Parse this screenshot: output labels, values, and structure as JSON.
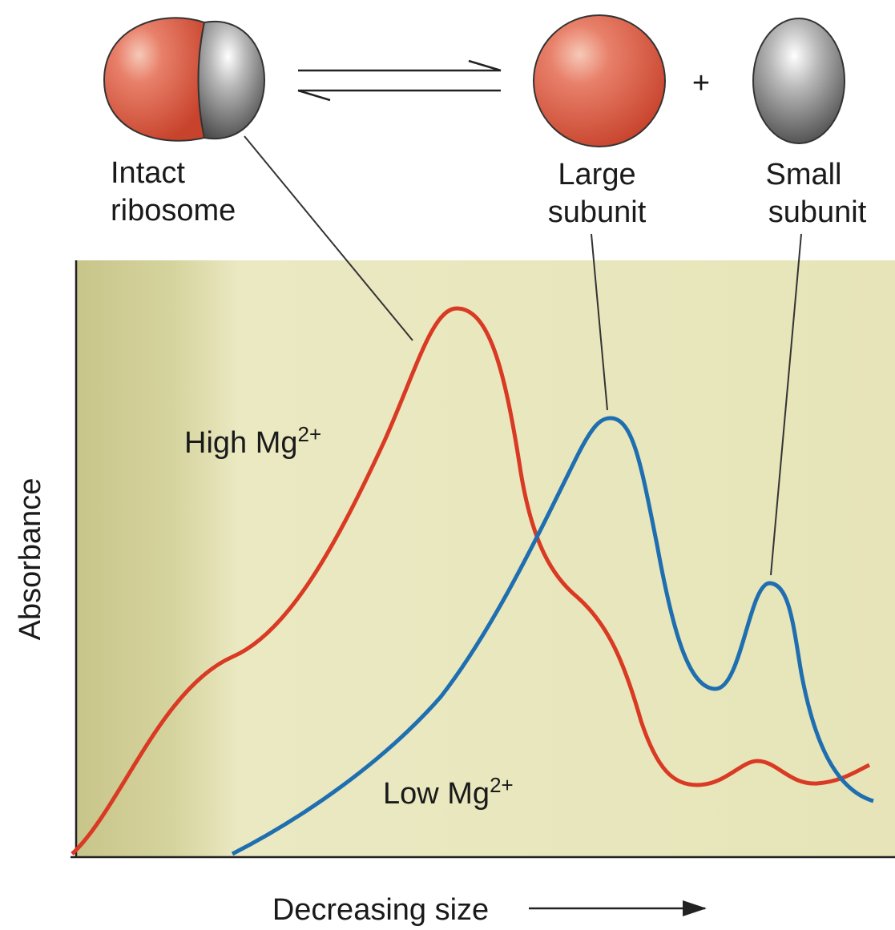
{
  "diagram": {
    "ribosome": {
      "line1": "Intact",
      "line2": "ribosome"
    },
    "large_subunit": {
      "line1": "Large",
      "line2": "subunit"
    },
    "small_subunit": {
      "line1": "Small",
      "line2": "subunit"
    },
    "plus": "+",
    "high_mg": {
      "text": "High Mg",
      "superscript": "2+"
    },
    "low_mg": {
      "text": "Low Mg",
      "superscript": "2+"
    },
    "y_axis_label": "Absorbance",
    "x_axis_label": "Decreasing size"
  }
}
